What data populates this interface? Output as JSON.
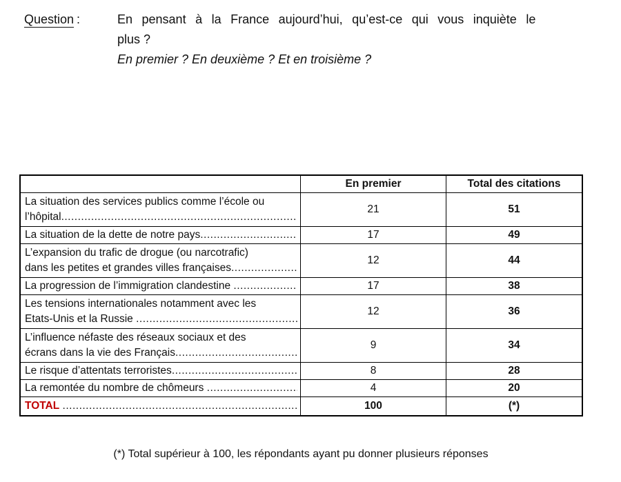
{
  "question": {
    "label": "Question",
    "colon": ":",
    "line1": "En pensant à la France aujourd’hui, qu’est-ce qui vous inquiète le",
    "line2": "plus ?",
    "line3": "En premier ? En deuxième ? Et en troisième ?"
  },
  "table": {
    "headers": {
      "col1": "",
      "col2": "En premier",
      "col3": "Total des citations"
    },
    "leader": "......................................................................................................................................................",
    "rows": [
      {
        "lines": [
          "La situation des services publics comme l’école ou",
          "l’hôpital"
        ],
        "en_premier": "21",
        "total": "51"
      },
      {
        "lines": [
          "La situation de la dette de notre pays"
        ],
        "en_premier": "17",
        "total": "49"
      },
      {
        "lines": [
          "L’expansion du trafic de drogue (ou narcotrafic)",
          "dans les petites et grandes villes françaises"
        ],
        "en_premier": "12",
        "total": "44"
      },
      {
        "lines": [
          "La progression de l’immigration clandestine "
        ],
        "en_premier": "17",
        "total": "38"
      },
      {
        "lines": [
          "Les tensions internationales notamment avec les",
          "Etats-Unis et la Russie "
        ],
        "en_premier": "12",
        "total": "36"
      },
      {
        "lines": [
          "L’influence néfaste des réseaux sociaux et des",
          "écrans dans la vie des Français"
        ],
        "en_premier": "9",
        "total": "34"
      },
      {
        "lines": [
          "Le risque d’attentats terroristes"
        ],
        "en_premier": "8",
        "total": "28"
      },
      {
        "lines": [
          "La remontée du nombre de chômeurs "
        ],
        "en_premier": "4",
        "total": "20"
      },
      {
        "lines": [
          "TOTAL "
        ],
        "en_premier": "100",
        "total": "(*)"
      }
    ]
  },
  "footnote": {
    "text": "(*) Total supérieur à 100, les répondants ayant pu donner plusieurs réponses"
  },
  "colors": {
    "total_red": "#c00000",
    "text": "#111111",
    "border": "#000000"
  }
}
